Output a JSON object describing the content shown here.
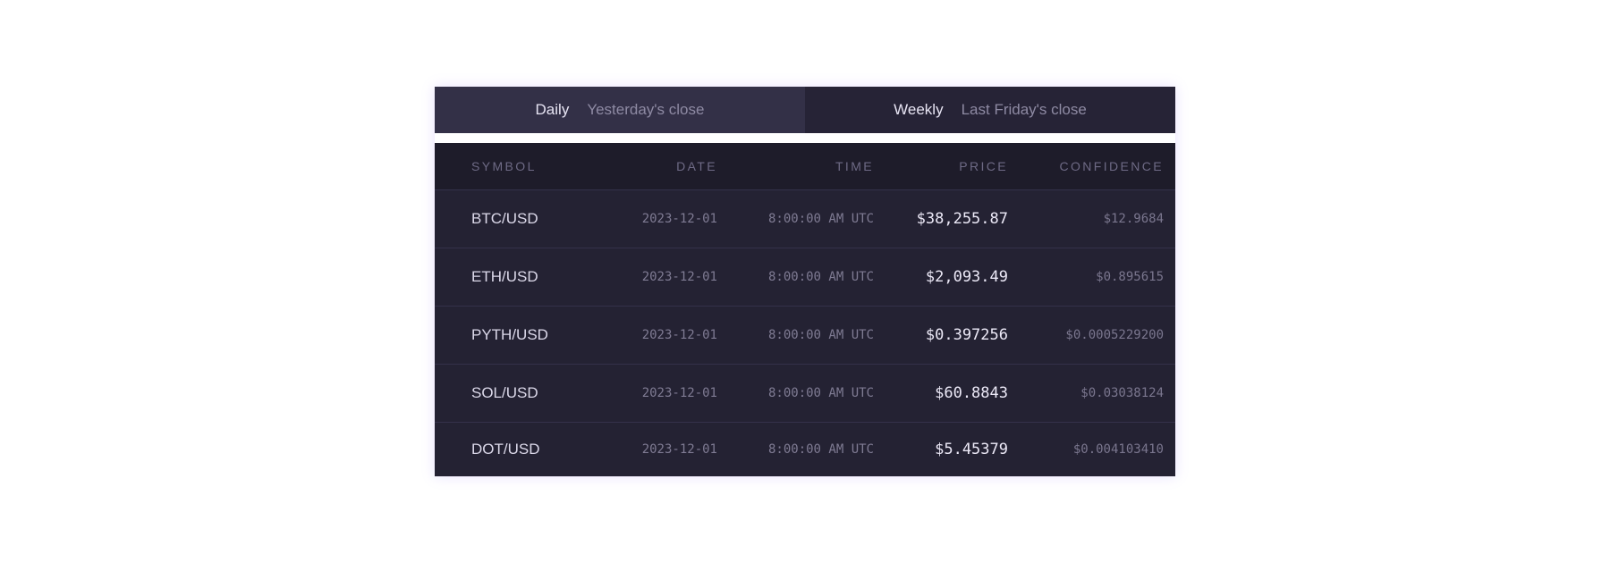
{
  "tabs": [
    {
      "label": "Daily",
      "description": "Yesterday's close",
      "active": true
    },
    {
      "label": "Weekly",
      "description": "Last Friday's close",
      "active": false
    }
  ],
  "table": {
    "headers": [
      "SYMBOL",
      "DATE",
      "TIME",
      "PRICE",
      "CONFIDENCE"
    ],
    "rows": [
      {
        "symbol": "BTC/USD",
        "date": "2023-12-01",
        "time": "8:00:00 AM UTC",
        "price": "$38,255.87",
        "confidence": "$12.9684"
      },
      {
        "symbol": "ETH/USD",
        "date": "2023-12-01",
        "time": "8:00:00 AM UTC",
        "price": "$2,093.49",
        "confidence": "$0.895615"
      },
      {
        "symbol": "PYTH/USD",
        "date": "2023-12-01",
        "time": "8:00:00 AM UTC",
        "price": "$0.397256",
        "confidence": "$0.0005229200"
      },
      {
        "symbol": "SOL/USD",
        "date": "2023-12-01",
        "time": "8:00:00 AM UTC",
        "price": "$60.8843",
        "confidence": "$0.03038124"
      },
      {
        "symbol": "DOT/USD",
        "date": "2023-12-01",
        "time": "8:00:00 AM UTC",
        "price": "$5.45379",
        "confidence": "$0.004103410"
      }
    ]
  },
  "colors": {
    "tab_bar_bg": "#262336",
    "tab_active_bg": "#333047",
    "header_bg": "#1e1c2a",
    "row_bg": "#242233",
    "glow": "#9678ff"
  }
}
